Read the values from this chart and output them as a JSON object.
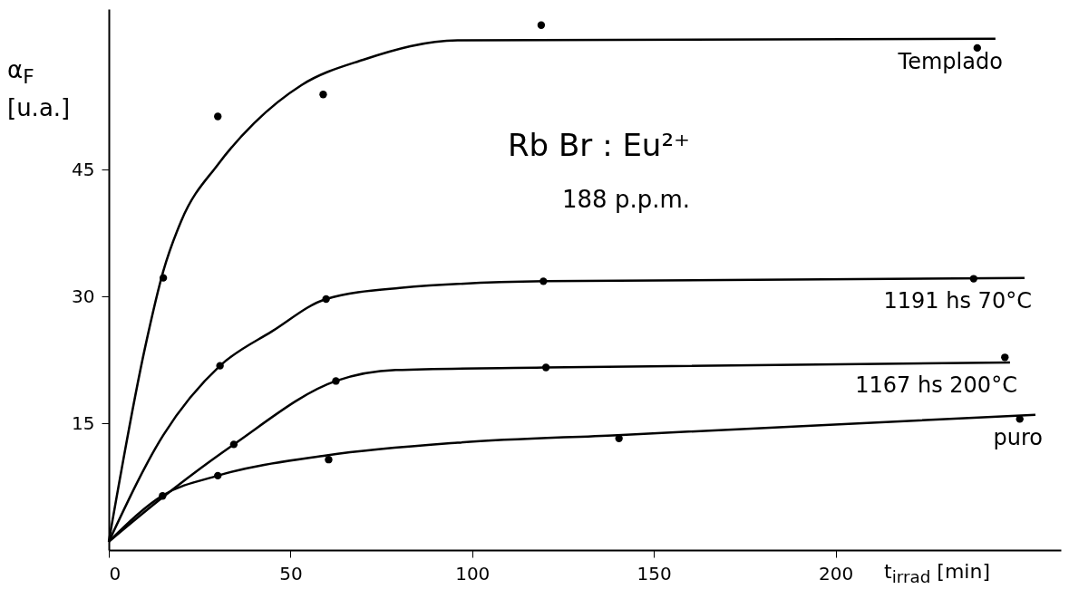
{
  "chart_data": {
    "type": "line",
    "xlabel": "t$_{irrad}$ [min]",
    "ylabel": "α$_{F}$ [u.a.]",
    "annotations": [
      "Rb Br : Eu²⁺",
      "188 p.p.m."
    ],
    "xlim": [
      0,
      262
    ],
    "ylim": [
      0,
      64
    ],
    "xticks": [
      0,
      50,
      100,
      150,
      200
    ],
    "yticks": [
      15,
      30,
      45
    ],
    "grid": false,
    "line_style": "solid",
    "series": [
      {
        "name": "Templado",
        "color": "#000000",
        "x": [
          0,
          10,
          15,
          20,
          30,
          40,
          53,
          70,
          96,
          244
        ],
        "values": [
          1,
          24,
          33,
          39,
          45.6,
          50.5,
          55,
          58,
          60.3,
          60.5
        ]
      },
      {
        "type": "scatter",
        "marker": "circle",
        "color": "#000000",
        "x": [
          15,
          30,
          59,
          119,
          239
        ],
        "values": [
          32.2,
          51.3,
          53.9,
          62.1,
          59.4
        ]
      },
      {
        "name": "1191 hs  70°C",
        "color": "#000000",
        "x": [
          0,
          15,
          30.6,
          45,
          59.8,
          80,
          120,
          252
        ],
        "values": [
          1,
          13.6,
          21.8,
          25.9,
          29.7,
          31,
          31.8,
          32.2
        ]
      },
      {
        "type": "scatter",
        "marker": "circle",
        "color": "#000000",
        "x": [
          30.6,
          59.8,
          119.6,
          238
        ],
        "values": [
          21.8,
          29.7,
          31.8,
          32.1
        ]
      },
      {
        "name": "1167 hs 200°C",
        "color": "#000000",
        "x": [
          0,
          15,
          34.4,
          62.5,
          79,
          120,
          248
        ],
        "values": [
          1,
          6.3,
          12.5,
          20,
          21.3,
          21.6,
          22.2
        ]
      },
      {
        "type": "scatter",
        "marker": "circle",
        "color": "#000000",
        "x": [
          34.4,
          62.5,
          120.3,
          246.6
        ],
        "values": [
          12.5,
          20,
          21.6,
          22.8
        ]
      },
      {
        "name": "puro",
        "color": "#000000",
        "x": [
          0,
          15,
          30,
          60,
          96,
          140,
          255
        ],
        "values": [
          1,
          6.5,
          8.8,
          11.2,
          12.7,
          13.6,
          16
        ]
      },
      {
        "type": "scatter",
        "marker": "circle",
        "color": "#000000",
        "x": [
          14.8,
          30,
          60.5,
          140.4,
          250.7
        ],
        "values": [
          6.4,
          8.8,
          10.7,
          13.2,
          15.5
        ]
      }
    ]
  }
}
